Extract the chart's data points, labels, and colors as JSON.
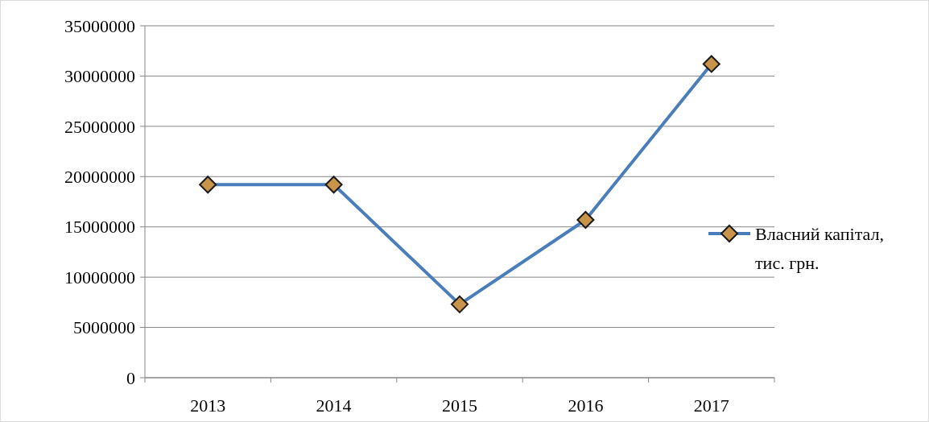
{
  "chart_data": {
    "type": "line",
    "categories": [
      "2013",
      "2014",
      "2015",
      "2016",
      "2017"
    ],
    "series": [
      {
        "name": "Власний капітал, тис. грн.",
        "color": "#4a7ebb",
        "values": [
          19200000,
          19200000,
          7300000,
          15700000,
          31200000
        ]
      }
    ],
    "ylim": [
      0,
      35000000
    ],
    "yticks": [
      0,
      5000000,
      10000000,
      15000000,
      20000000,
      25000000,
      30000000,
      35000000
    ],
    "grid": "y",
    "legend": "right",
    "marker": "diamond",
    "line_style": "solid"
  }
}
